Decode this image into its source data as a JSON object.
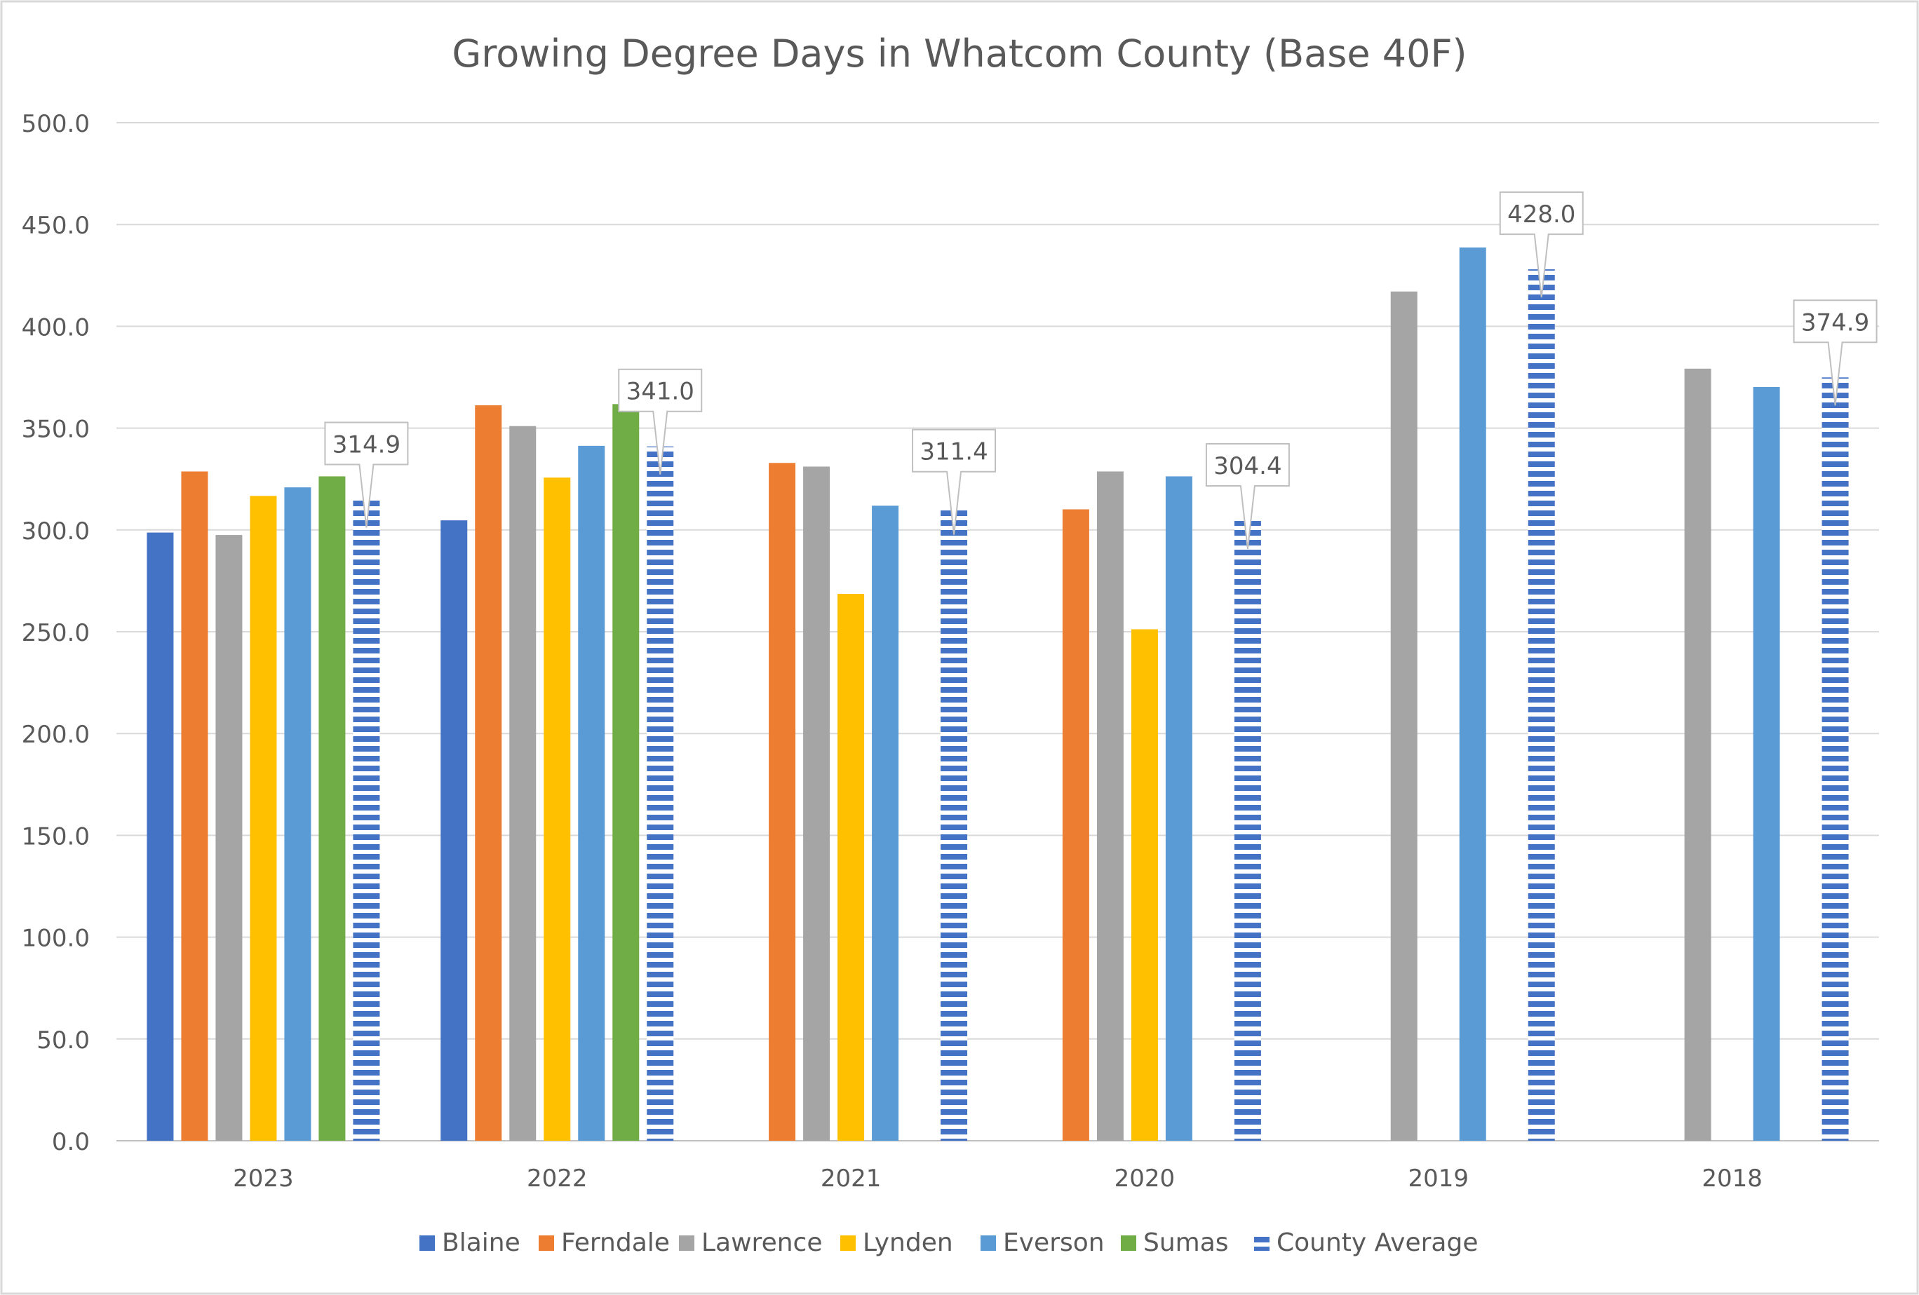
{
  "chart_data": {
    "type": "bar",
    "title": "Growing Degree Days in Whatcom County (Base 40F)",
    "xlabel": "",
    "ylabel": "",
    "ylim": [
      0,
      500
    ],
    "yticks": [
      "0.0",
      "50.0",
      "100.0",
      "150.0",
      "200.0",
      "250.0",
      "300.0",
      "350.0",
      "400.0",
      "450.0",
      "500.0"
    ],
    "grid": true,
    "legend_position": "bottom",
    "categories": [
      "2023",
      "2022",
      "2021",
      "2020",
      "2019",
      "2018"
    ],
    "series": [
      {
        "name": "Blaine",
        "color": "#4472C4",
        "values": [
          298.7,
          304.7,
          null,
          null,
          null,
          null
        ]
      },
      {
        "name": "Ferndale",
        "color": "#ED7D31",
        "values": [
          328.7,
          361.2,
          332.9,
          310.1,
          null,
          null
        ]
      },
      {
        "name": "Lawrence",
        "color": "#A5A5A5",
        "values": [
          297.5,
          351.0,
          331.1,
          328.7,
          417.1,
          379.2
        ]
      },
      {
        "name": "Lynden",
        "color": "#FFC000",
        "values": [
          316.7,
          325.7,
          268.6,
          251.2,
          null,
          null
        ]
      },
      {
        "name": "Everson",
        "color": "#5B9BD5",
        "values": [
          320.9,
          341.3,
          311.9,
          326.3,
          438.7,
          370.2
        ]
      },
      {
        "name": "Sumas",
        "color": "#70AD47",
        "values": [
          326.3,
          361.8,
          null,
          null,
          null,
          null
        ]
      },
      {
        "name": "County Average",
        "color": "#4472C4",
        "pattern": "horizontal-stripes",
        "values": [
          314.9,
          341.0,
          311.4,
          304.4,
          428.0,
          374.9
        ],
        "data_labels": [
          "314.9",
          "341.0",
          "311.4",
          "304.4",
          "428.0",
          "374.9"
        ]
      }
    ]
  }
}
